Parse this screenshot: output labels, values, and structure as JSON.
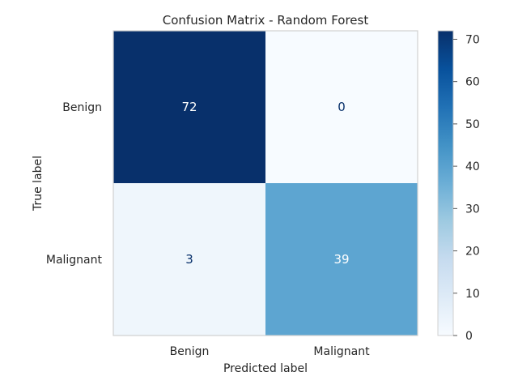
{
  "chart_data": {
    "type": "heatmap",
    "title": "Confusion Matrix - Random Forest",
    "xlabel": "Predicted label",
    "ylabel": "True label",
    "x_categories": [
      "Benign",
      "Malignant"
    ],
    "y_categories": [
      "Benign",
      "Malignant"
    ],
    "values": [
      [
        72,
        0
      ],
      [
        3,
        39
      ]
    ],
    "colormap": "Blues",
    "color_range": [
      0,
      72
    ],
    "colorbar_ticks": [
      0,
      10,
      20,
      30,
      40,
      50,
      60,
      70
    ],
    "grid": false
  }
}
